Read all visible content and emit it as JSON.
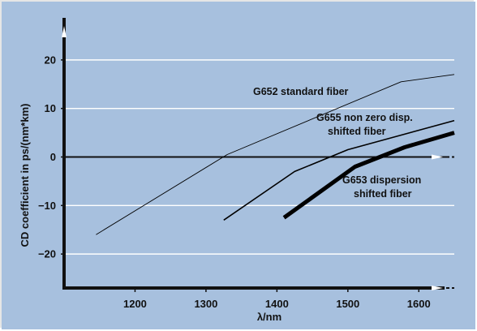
{
  "colors": {
    "background": "#a7c0de",
    "gridline": "#ffffff",
    "axis": "#111111",
    "series": "#000000"
  },
  "chart_data": {
    "type": "line",
    "title": "",
    "xlabel": "λ/nm",
    "ylabel": "CD coefficient in ps/(nm*km)",
    "xlim": [
      1100,
      1650
    ],
    "ylim": [
      -27,
      27
    ],
    "x_ticks": [
      1200,
      1300,
      1400,
      1500,
      1600
    ],
    "x_tick_labels": [
      "1200",
      "1300",
      "1400",
      "1500",
      "1600"
    ],
    "y_ticks": [
      20,
      10,
      0,
      -10,
      -20
    ],
    "y_tick_labels": [
      "20",
      "10",
      "0",
      "−10",
      "−20"
    ],
    "grid": true,
    "legend": "none (inline curve labels)",
    "series": [
      {
        "name": "G652 standard fiber",
        "label_lines": [
          "G652 standard fiber"
        ],
        "width": "thin",
        "x": [
          1145,
          1330,
          1575,
          1650
        ],
        "y": [
          -16,
          0.5,
          15.5,
          17
        ]
      },
      {
        "name": "G655 non zero disp. shifted fiber",
        "label_lines": [
          "G655 non zero disp.",
          "shifted fiber"
        ],
        "width": "medium",
        "x": [
          1325,
          1425,
          1500,
          1650
        ],
        "y": [
          -13,
          -3,
          1.5,
          7.5
        ]
      },
      {
        "name": "G653 dispersion shifted fiber",
        "label_lines": [
          "G653 dispersion",
          "shifted fiber"
        ],
        "width": "thick",
        "x": [
          1410,
          1510,
          1580,
          1650
        ],
        "y": [
          -12.5,
          -2,
          2,
          5
        ]
      }
    ]
  }
}
